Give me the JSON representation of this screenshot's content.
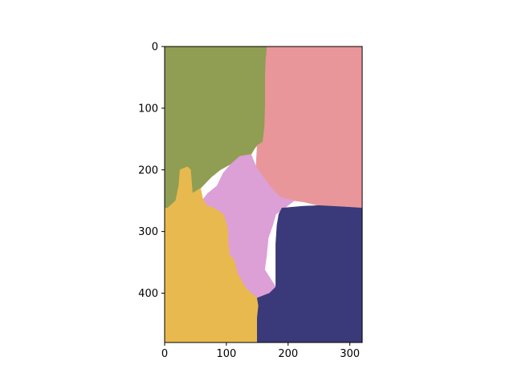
{
  "chart_data": {
    "type": "heatmap",
    "title": "",
    "xlabel": "",
    "ylabel": "",
    "xlim": [
      0,
      320
    ],
    "ylim": [
      480,
      0
    ],
    "y_axis_inverted": true,
    "grid": false,
    "legend": "none",
    "x_ticks": [
      0,
      100,
      200,
      300
    ],
    "y_ticks": [
      0,
      100,
      200,
      300,
      400
    ],
    "segments": [
      {
        "id": "olive",
        "color": "#8f9e52",
        "outline": [
          [
            0,
            0
          ],
          [
            166,
            0
          ],
          [
            164,
            20
          ],
          [
            163,
            45
          ],
          [
            163,
            95
          ],
          [
            162,
            130
          ],
          [
            159,
            155
          ],
          [
            150,
            160
          ],
          [
            146,
            165
          ],
          [
            140,
            175
          ],
          [
            122,
            178
          ],
          [
            108,
            190
          ],
          [
            90,
            200
          ],
          [
            75,
            212
          ],
          [
            58,
            230
          ],
          [
            45,
            238
          ],
          [
            42,
            200
          ],
          [
            37,
            195
          ],
          [
            25,
            200
          ],
          [
            23,
            225
          ],
          [
            18,
            250
          ],
          [
            5,
            262
          ],
          [
            0,
            262
          ]
        ]
      },
      {
        "id": "pink",
        "color": "#e8969a",
        "outline": [
          [
            166,
            0
          ],
          [
            320,
            0
          ],
          [
            320,
            262
          ],
          [
            290,
            260
          ],
          [
            250,
            258
          ],
          [
            225,
            252
          ],
          [
            210,
            250
          ],
          [
            188,
            245
          ],
          [
            175,
            232
          ],
          [
            160,
            212
          ],
          [
            148,
            195
          ],
          [
            150,
            160
          ],
          [
            159,
            155
          ],
          [
            162,
            130
          ],
          [
            163,
            95
          ],
          [
            163,
            45
          ],
          [
            164,
            20
          ]
        ]
      },
      {
        "id": "lilac",
        "color": "#dc9fd6",
        "outline": [
          [
            108,
            190
          ],
          [
            122,
            178
          ],
          [
            140,
            175
          ],
          [
            148,
            195
          ],
          [
            160,
            212
          ],
          [
            175,
            232
          ],
          [
            188,
            245
          ],
          [
            210,
            250
          ],
          [
            190,
            265
          ],
          [
            180,
            272
          ],
          [
            175,
            290
          ],
          [
            168,
            310
          ],
          [
            165,
            340
          ],
          [
            162,
            362
          ],
          [
            180,
            390
          ],
          [
            170,
            400
          ],
          [
            150,
            408
          ],
          [
            140,
            400
          ],
          [
            130,
            390
          ],
          [
            118,
            368
          ],
          [
            112,
            345
          ],
          [
            105,
            338
          ],
          [
            103,
            320
          ],
          [
            102,
            295
          ],
          [
            98,
            280
          ],
          [
            95,
            272
          ],
          [
            80,
            262
          ],
          [
            68,
            258
          ],
          [
            62,
            248
          ],
          [
            70,
            238
          ],
          [
            85,
            226
          ],
          [
            95,
            205
          ]
        ]
      },
      {
        "id": "gold",
        "color": "#e8b94e",
        "outline": [
          [
            0,
            262
          ],
          [
            5,
            262
          ],
          [
            18,
            250
          ],
          [
            23,
            225
          ],
          [
            25,
            200
          ],
          [
            37,
            195
          ],
          [
            42,
            200
          ],
          [
            45,
            238
          ],
          [
            58,
            230
          ],
          [
            62,
            248
          ],
          [
            68,
            258
          ],
          [
            80,
            262
          ],
          [
            95,
            272
          ],
          [
            98,
            280
          ],
          [
            102,
            295
          ],
          [
            103,
            320
          ],
          [
            105,
            338
          ],
          [
            112,
            345
          ],
          [
            118,
            368
          ],
          [
            130,
            390
          ],
          [
            140,
            400
          ],
          [
            150,
            408
          ],
          [
            152,
            420
          ],
          [
            150,
            440
          ],
          [
            150,
            480
          ],
          [
            0,
            480
          ]
        ]
      },
      {
        "id": "navy",
        "color": "#3a3a7a",
        "outline": [
          [
            150,
            480
          ],
          [
            150,
            440
          ],
          [
            152,
            420
          ],
          [
            150,
            408
          ],
          [
            170,
            400
          ],
          [
            180,
            390
          ],
          [
            180,
            370
          ],
          [
            180,
            320
          ],
          [
            182,
            290
          ],
          [
            185,
            272
          ],
          [
            190,
            262
          ],
          [
            225,
            259
          ],
          [
            250,
            258
          ],
          [
            290,
            260
          ],
          [
            320,
            262
          ],
          [
            320,
            480
          ]
        ]
      }
    ]
  }
}
